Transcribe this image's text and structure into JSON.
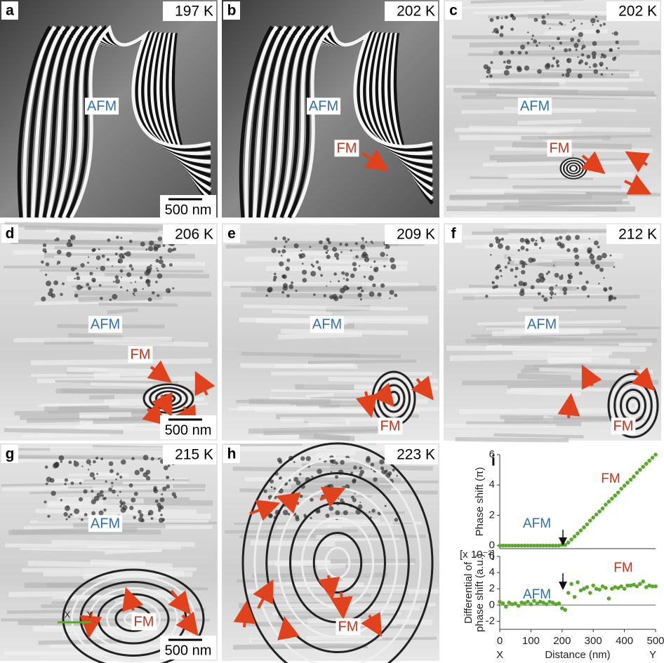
{
  "panels": [
    {
      "letter": "a",
      "temperature": "197 K",
      "labels": [
        {
          "text": "AFM",
          "color": "#2f6fb5"
        }
      ],
      "scale_bar": "500 nm"
    },
    {
      "letter": "b",
      "temperature": "202 K",
      "labels": [
        {
          "text": "AFM",
          "color": "#2f6fb5"
        },
        {
          "text": "FM",
          "color": "#c8341c"
        }
      ]
    },
    {
      "letter": "c",
      "temperature": "202 K",
      "labels": [
        {
          "text": "AFM",
          "color": "#2f6fb5"
        },
        {
          "text": "FM",
          "color": "#c8341c"
        }
      ]
    },
    {
      "letter": "d",
      "temperature": "206 K",
      "labels": [
        {
          "text": "AFM",
          "color": "#2f6fb5"
        },
        {
          "text": "FM",
          "color": "#c8341c"
        }
      ],
      "scale_bar": "500 nm"
    },
    {
      "letter": "e",
      "temperature": "209 K",
      "labels": [
        {
          "text": "AFM",
          "color": "#2f6fb5"
        },
        {
          "text": "FM",
          "color": "#c8341c"
        }
      ]
    },
    {
      "letter": "f",
      "temperature": "212 K",
      "labels": [
        {
          "text": "AFM",
          "color": "#2f6fb5"
        },
        {
          "text": "FM",
          "color": "#c8341c"
        }
      ]
    },
    {
      "letter": "g",
      "temperature": "215 K",
      "labels": [
        {
          "text": "AFM",
          "color": "#2f6fb5"
        },
        {
          "text": "FM",
          "color": "#c8341c"
        },
        {
          "text": "X",
          "color": "#222222"
        },
        {
          "text": "Y",
          "color": "#222222"
        }
      ],
      "scale_bar": "500 nm"
    },
    {
      "letter": "h",
      "temperature": "223 K",
      "labels": [
        {
          "text": "FM",
          "color": "#c8341c"
        }
      ]
    }
  ],
  "panel_i_letter": "i",
  "chart_data": [
    {
      "type": "scatter",
      "ylabel": "Phase shift (π)",
      "color": "#5aaa2a",
      "annotations": [
        {
          "text": "AFM",
          "color": "#2f6fb5"
        },
        {
          "text": "FM",
          "color": "#c8341c"
        }
      ],
      "xlim": [
        0,
        500
      ],
      "ylim": [
        -0.2,
        6
      ],
      "yticks": [
        0,
        2,
        4,
        6
      ],
      "x": [
        0,
        10,
        20,
        30,
        40,
        50,
        60,
        70,
        80,
        90,
        100,
        110,
        120,
        130,
        140,
        150,
        160,
        170,
        180,
        190,
        200,
        210,
        220,
        230,
        240,
        250,
        260,
        270,
        280,
        290,
        300,
        310,
        320,
        330,
        340,
        350,
        360,
        370,
        380,
        390,
        400,
        410,
        420,
        430,
        440,
        450,
        460,
        470,
        480,
        490,
        500
      ],
      "values": [
        0,
        0,
        0,
        0,
        0,
        0,
        0,
        0,
        0,
        0,
        0,
        0,
        0,
        0,
        0,
        0,
        0,
        0,
        0,
        0,
        0.05,
        0.05,
        0.2,
        0.4,
        0.6,
        0.8,
        1.0,
        1.2,
        1.4,
        1.65,
        1.85,
        2.05,
        2.25,
        2.45,
        2.7,
        2.9,
        3.1,
        3.3,
        3.5,
        3.75,
        3.95,
        4.15,
        4.35,
        4.55,
        4.8,
        5.0,
        5.2,
        5.4,
        5.6,
        5.8,
        6.0
      ]
    },
    {
      "type": "scatter",
      "ylabel": [
        "Differential of",
        "phase shift (a.u.)"
      ],
      "scale_label": "[x 10⁻²]",
      "color": "#5aaa2a",
      "annotations": [
        {
          "text": "AFM",
          "color": "#2f6fb5"
        },
        {
          "text": "FM",
          "color": "#c8341c"
        }
      ],
      "xlabel": "Distance (nm)",
      "x_end_labels": [
        "X",
        "Y"
      ],
      "xlim": [
        0,
        500
      ],
      "xticks": [
        0,
        100,
        200,
        300,
        400,
        500
      ],
      "ylim": [
        -3,
        6
      ],
      "yticks": [
        -2,
        0,
        2,
        4,
        6
      ],
      "x": [
        0,
        10,
        20,
        30,
        40,
        50,
        60,
        70,
        80,
        90,
        100,
        110,
        120,
        130,
        140,
        150,
        160,
        170,
        180,
        190,
        200,
        210,
        220,
        230,
        240,
        250,
        260,
        270,
        280,
        290,
        300,
        310,
        320,
        330,
        340,
        350,
        360,
        370,
        380,
        390,
        400,
        410,
        420,
        430,
        440,
        450,
        460,
        470,
        480,
        490,
        500
      ],
      "values": [
        0.4,
        0.2,
        -0.2,
        0.3,
        0.1,
        0.2,
        -0.1,
        0.3,
        0.2,
        0.4,
        0.1,
        0.5,
        0.2,
        0.4,
        0.3,
        0.1,
        0.4,
        0.3,
        0.1,
        0.2,
        -0.4,
        -0.6,
        1.5,
        2.6,
        1.0,
        2.8,
        1.8,
        2.0,
        2.2,
        1.5,
        2.4,
        2.0,
        1.9,
        2.3,
        2.1,
        0.8,
        2.0,
        2.2,
        2.1,
        2.3,
        2.0,
        2.4,
        2.4,
        2.5,
        2.3,
        2.6,
        2.9,
        2.2,
        2.4,
        2.3,
        2.3
      ]
    }
  ]
}
